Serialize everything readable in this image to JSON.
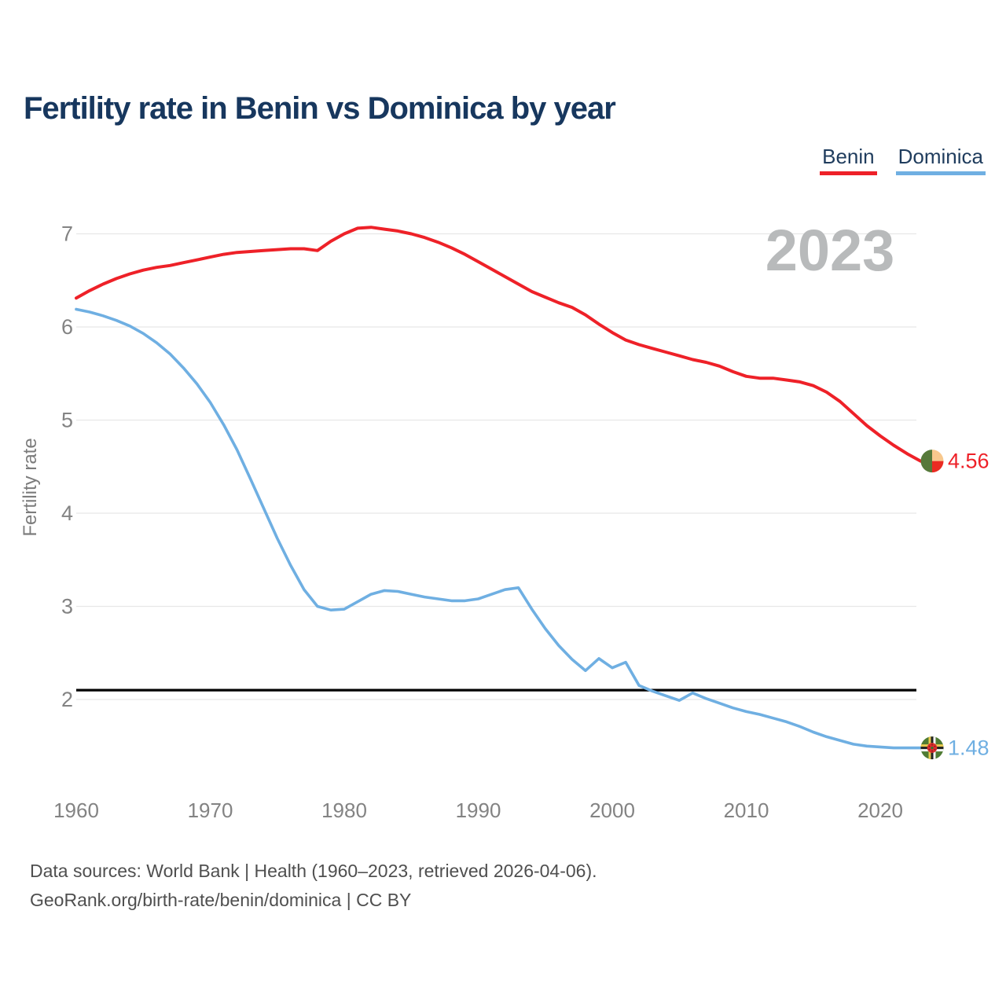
{
  "title": "Fertility rate in Benin vs Dominica by year",
  "legend": [
    {
      "label": "Benin",
      "color": "#ee2128"
    },
    {
      "label": "Dominica",
      "color": "#6fafe2"
    }
  ],
  "footer": {
    "line1": "Data sources: World Bank | Health (1960–2023, retrieved 2026-04-06).",
    "line2": "GeoRank.org/birth-rate/benin/dominica | CC BY"
  },
  "chart_data": {
    "type": "line",
    "title": "Fertility rate in Benin vs Dominica by year",
    "xlabel": "",
    "ylabel": "Fertility rate",
    "xlim": [
      1960,
      2023
    ],
    "ylim": [
      2,
      7
    ],
    "x_ticks": [
      1960,
      1970,
      1980,
      1990,
      2000,
      2010,
      2020
    ],
    "y_ticks": [
      2,
      3,
      4,
      5,
      6,
      7
    ],
    "grid": "horizontal",
    "legend_position": "top-right",
    "watermark": "2023",
    "reference_line": {
      "value": 2.1,
      "color": "#000000"
    },
    "years": [
      1960,
      1961,
      1962,
      1963,
      1964,
      1965,
      1966,
      1967,
      1968,
      1969,
      1970,
      1971,
      1972,
      1973,
      1974,
      1975,
      1976,
      1977,
      1978,
      1979,
      1980,
      1981,
      1982,
      1983,
      1984,
      1985,
      1986,
      1987,
      1988,
      1989,
      1990,
      1991,
      1992,
      1993,
      1994,
      1995,
      1996,
      1997,
      1998,
      1999,
      2000,
      2001,
      2002,
      2003,
      2004,
      2005,
      2006,
      2007,
      2008,
      2009,
      2010,
      2011,
      2012,
      2013,
      2014,
      2015,
      2016,
      2017,
      2018,
      2019,
      2020,
      2021,
      2022,
      2023
    ],
    "series": [
      {
        "name": "Benin",
        "color": "#ee2128",
        "end_label": "4.56",
        "end_value": 4.56,
        "values": [
          6.31,
          6.39,
          6.46,
          6.52,
          6.57,
          6.61,
          6.64,
          6.66,
          6.69,
          6.72,
          6.75,
          6.78,
          6.8,
          6.81,
          6.82,
          6.83,
          6.84,
          6.84,
          6.82,
          6.92,
          7.0,
          7.06,
          7.07,
          7.05,
          7.03,
          7.0,
          6.96,
          6.91,
          6.85,
          6.78,
          6.7,
          6.62,
          6.54,
          6.46,
          6.38,
          6.32,
          6.26,
          6.21,
          6.13,
          6.03,
          5.94,
          5.86,
          5.81,
          5.77,
          5.73,
          5.69,
          5.65,
          5.62,
          5.58,
          5.52,
          5.47,
          5.45,
          5.45,
          5.43,
          5.41,
          5.37,
          5.3,
          5.2,
          5.07,
          4.94,
          4.83,
          4.73,
          4.64,
          4.56
        ]
      },
      {
        "name": "Dominica",
        "color": "#6fafe2",
        "end_label": "1.48",
        "end_value": 1.48,
        "values": [
          6.19,
          6.16,
          6.12,
          6.07,
          6.01,
          5.93,
          5.83,
          5.71,
          5.56,
          5.39,
          5.19,
          4.95,
          4.68,
          4.37,
          4.05,
          3.73,
          3.44,
          3.18,
          3.0,
          2.96,
          2.97,
          3.05,
          3.13,
          3.17,
          3.16,
          3.13,
          3.1,
          3.08,
          3.06,
          3.06,
          3.08,
          3.13,
          3.18,
          3.2,
          2.97,
          2.76,
          2.58,
          2.43,
          2.31,
          2.44,
          2.34,
          2.4,
          2.15,
          2.09,
          2.04,
          1.99,
          2.07,
          2.01,
          1.96,
          1.91,
          1.87,
          1.84,
          1.8,
          1.76,
          1.71,
          1.65,
          1.6,
          1.56,
          1.52,
          1.5,
          1.49,
          1.48,
          1.48,
          1.48
        ]
      }
    ]
  }
}
